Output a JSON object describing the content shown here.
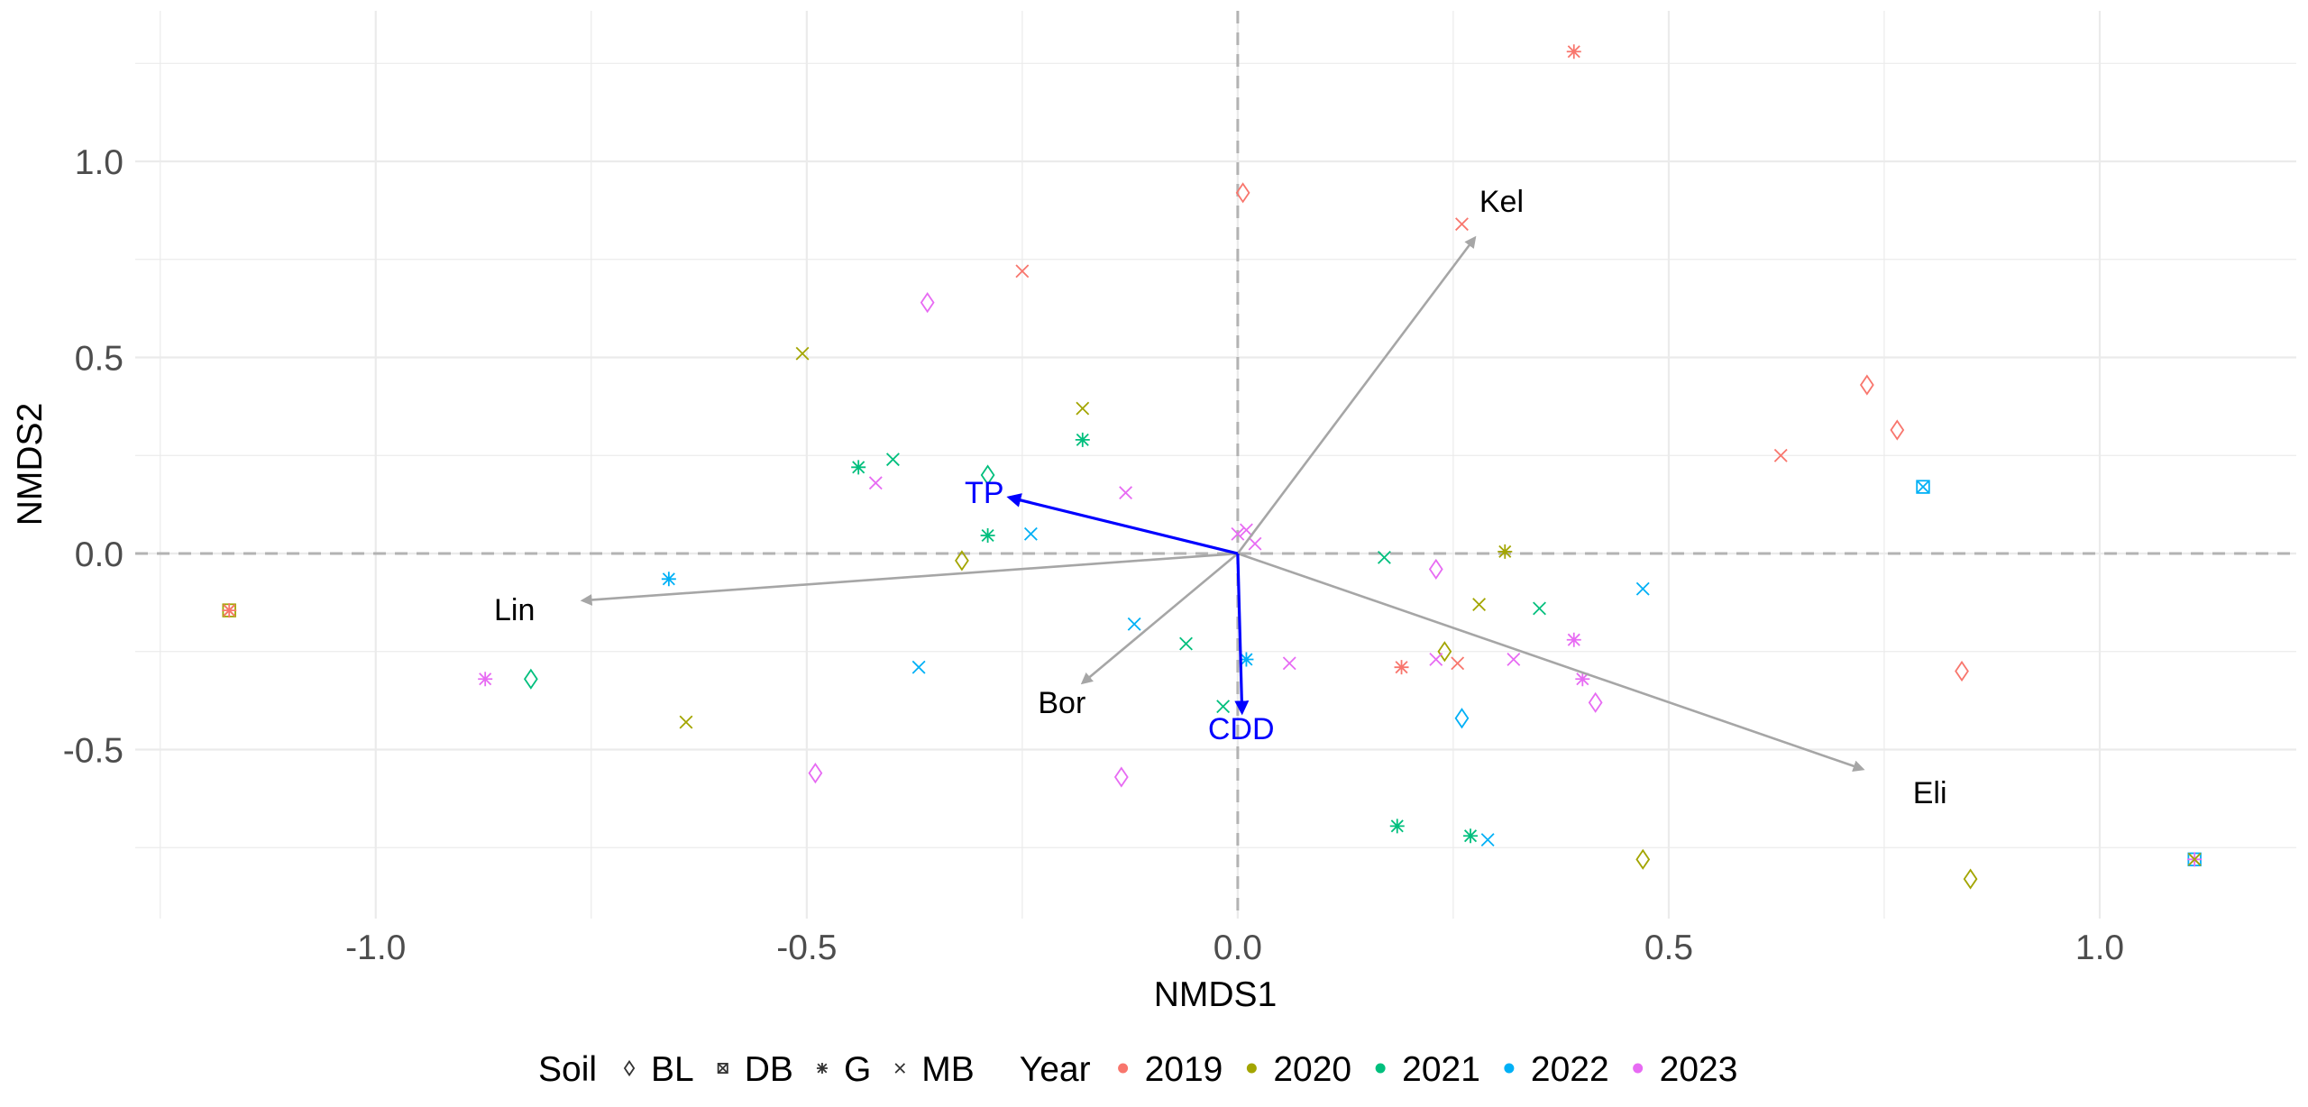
{
  "chart_data": {
    "type": "scatter",
    "title": "",
    "xlabel": "NMDS1",
    "ylabel": "NMDS2",
    "xlim": [
      -1.279,
      1.228
    ],
    "ylim": [
      -0.931,
      1.384
    ],
    "x_ticks": [
      -1.0,
      -0.5,
      0.0,
      0.5,
      1.0
    ],
    "x_tick_labels": [
      "-1.0",
      "-0.5",
      "0.0",
      "0.5",
      "1.0"
    ],
    "y_ticks": [
      -0.5,
      0.0,
      0.5,
      1.0
    ],
    "y_tick_labels": [
      "-0.5",
      "0.0",
      "0.5",
      "1.0"
    ],
    "x_minor": [
      -1.25,
      -0.75,
      -0.25,
      0.25,
      0.75
    ],
    "y_minor": [
      -0.75,
      -0.25,
      0.25,
      0.75,
      1.25
    ],
    "grid": true,
    "reference_lines": {
      "x": 0,
      "y": 0,
      "style": "dashed"
    },
    "legend_position": "bottom",
    "legend": {
      "soil_title": "Soil",
      "soil": [
        {
          "key": "BL",
          "label": "BL",
          "shape": "diamond"
        },
        {
          "key": "DB",
          "label": "DB",
          "shape": "square-cross"
        },
        {
          "key": "G",
          "label": "G",
          "shape": "asterisk"
        },
        {
          "key": "MB",
          "label": "MB",
          "shape": "cross"
        }
      ],
      "year_title": "Year",
      "years": [
        {
          "key": "2019",
          "label": "2019",
          "color": "#F8766D"
        },
        {
          "key": "2020",
          "label": "2020",
          "color": "#A3A500"
        },
        {
          "key": "2021",
          "label": "2021",
          "color": "#00BF7D"
        },
        {
          "key": "2022",
          "label": "2022",
          "color": "#00B0F6"
        },
        {
          "key": "2023",
          "label": "2023",
          "color": "#E76BF3"
        }
      ]
    },
    "points": [
      {
        "x": 0.39,
        "y": 1.28,
        "soil": "G",
        "year": "2019"
      },
      {
        "x": 0.006,
        "y": 0.92,
        "soil": "BL",
        "year": "2019"
      },
      {
        "x": 0.26,
        "y": 0.84,
        "soil": "MB",
        "year": "2019"
      },
      {
        "x": -0.25,
        "y": 0.72,
        "soil": "MB",
        "year": "2019"
      },
      {
        "x": -0.36,
        "y": 0.64,
        "soil": "BL",
        "year": "2023"
      },
      {
        "x": -0.505,
        "y": 0.51,
        "soil": "MB",
        "year": "2020"
      },
      {
        "x": -0.18,
        "y": 0.37,
        "soil": "MB",
        "year": "2020"
      },
      {
        "x": -0.18,
        "y": 0.29,
        "soil": "G",
        "year": "2021"
      },
      {
        "x": -0.44,
        "y": 0.22,
        "soil": "G",
        "year": "2021"
      },
      {
        "x": -0.4,
        "y": 0.24,
        "soil": "MB",
        "year": "2021"
      },
      {
        "x": -0.42,
        "y": 0.18,
        "soil": "MB",
        "year": "2023"
      },
      {
        "x": -0.29,
        "y": 0.2,
        "soil": "BL",
        "year": "2021"
      },
      {
        "x": -0.13,
        "y": 0.155,
        "soil": "MB",
        "year": "2023"
      },
      {
        "x": -0.29,
        "y": 0.046,
        "soil": "G",
        "year": "2021"
      },
      {
        "x": -0.24,
        "y": 0.05,
        "soil": "MB",
        "year": "2022"
      },
      {
        "x": -0.32,
        "y": -0.018,
        "soil": "BL",
        "year": "2020"
      },
      {
        "x": 0.0,
        "y": 0.05,
        "soil": "MB",
        "year": "2023"
      },
      {
        "x": 0.01,
        "y": 0.06,
        "soil": "MB",
        "year": "2023"
      },
      {
        "x": 0.02,
        "y": 0.025,
        "soil": "MB",
        "year": "2023"
      },
      {
        "x": 0.17,
        "y": -0.01,
        "soil": "MB",
        "year": "2021"
      },
      {
        "x": 0.23,
        "y": -0.04,
        "soil": "BL",
        "year": "2023"
      },
      {
        "x": 0.31,
        "y": 0.005,
        "soil": "G",
        "year": "2020"
      },
      {
        "x": 0.28,
        "y": -0.13,
        "soil": "MB",
        "year": "2020"
      },
      {
        "x": 0.35,
        "y": -0.14,
        "soil": "MB",
        "year": "2021"
      },
      {
        "x": 0.39,
        "y": -0.22,
        "soil": "G",
        "year": "2023"
      },
      {
        "x": 0.01,
        "y": -0.27,
        "soil": "G",
        "year": "2022"
      },
      {
        "x": 0.06,
        "y": -0.28,
        "soil": "MB",
        "year": "2023"
      },
      {
        "x": 0.19,
        "y": -0.29,
        "soil": "G",
        "year": "2019"
      },
      {
        "x": 0.24,
        "y": -0.25,
        "soil": "BL",
        "year": "2020"
      },
      {
        "x": 0.23,
        "y": -0.27,
        "soil": "MB",
        "year": "2023"
      },
      {
        "x": 0.255,
        "y": -0.28,
        "soil": "MB",
        "year": "2019"
      },
      {
        "x": 0.32,
        "y": -0.27,
        "soil": "MB",
        "year": "2023"
      },
      {
        "x": 0.4,
        "y": -0.32,
        "soil": "G",
        "year": "2023"
      },
      {
        "x": 0.415,
        "y": -0.38,
        "soil": "BL",
        "year": "2023"
      },
      {
        "x": 0.26,
        "y": -0.42,
        "soil": "BL",
        "year": "2022"
      },
      {
        "x": -0.017,
        "y": -0.39,
        "soil": "MB",
        "year": "2021"
      },
      {
        "x": 0.73,
        "y": 0.43,
        "soil": "BL",
        "year": "2019"
      },
      {
        "x": 0.765,
        "y": 0.315,
        "soil": "BL",
        "year": "2019"
      },
      {
        "x": 0.63,
        "y": 0.25,
        "soil": "MB",
        "year": "2019"
      },
      {
        "x": 0.795,
        "y": 0.17,
        "soil": "DB",
        "year": "2022"
      },
      {
        "x": 0.47,
        "y": -0.09,
        "soil": "MB",
        "year": "2022"
      },
      {
        "x": 0.84,
        "y": -0.3,
        "soil": "BL",
        "year": "2019"
      },
      {
        "x": 0.47,
        "y": -0.78,
        "soil": "BL",
        "year": "2020"
      },
      {
        "x": 0.85,
        "y": -0.83,
        "soil": "BL",
        "year": "2020"
      },
      {
        "x": 1.11,
        "y": -0.78,
        "soil": "DB",
        "year": "2022"
      },
      {
        "x": 1.11,
        "y": -0.78,
        "soil": "G",
        "year": "2023"
      },
      {
        "x": 1.11,
        "y": -0.78,
        "soil": "MB",
        "year": "2020"
      },
      {
        "x": -1.17,
        "y": -0.145,
        "soil": "DB",
        "year": "2020"
      },
      {
        "x": -1.17,
        "y": -0.145,
        "soil": "G",
        "year": "2019"
      },
      {
        "x": -0.66,
        "y": -0.065,
        "soil": "G",
        "year": "2022"
      },
      {
        "x": -0.873,
        "y": -0.32,
        "soil": "G",
        "year": "2023"
      },
      {
        "x": -0.82,
        "y": -0.32,
        "soil": "BL",
        "year": "2021"
      },
      {
        "x": -0.64,
        "y": -0.43,
        "soil": "MB",
        "year": "2020"
      },
      {
        "x": -0.12,
        "y": -0.18,
        "soil": "MB",
        "year": "2022"
      },
      {
        "x": -0.06,
        "y": -0.23,
        "soil": "MB",
        "year": "2021"
      },
      {
        "x": -0.37,
        "y": -0.29,
        "soil": "MB",
        "year": "2022"
      },
      {
        "x": -0.49,
        "y": -0.56,
        "soil": "BL",
        "year": "2023"
      },
      {
        "x": -0.135,
        "y": -0.57,
        "soil": "BL",
        "year": "2023"
      },
      {
        "x": 0.185,
        "y": -0.695,
        "soil": "G",
        "year": "2021"
      },
      {
        "x": 0.27,
        "y": -0.72,
        "soil": "G",
        "year": "2021"
      },
      {
        "x": 0.29,
        "y": -0.73,
        "soil": "MB",
        "year": "2022"
      }
    ],
    "vectors": [
      {
        "name": "Kel",
        "x": 0.275,
        "y": 0.805,
        "label_x": 0.306,
        "label_y": 0.897,
        "color": "#A6A6A6",
        "label_color": "#000000"
      },
      {
        "name": "Lin",
        "x": -0.76,
        "y": -0.12,
        "label_x": -0.839,
        "label_y": -0.145,
        "color": "#A6A6A6",
        "label_color": "#000000"
      },
      {
        "name": "Bor",
        "x": -0.18,
        "y": -0.33,
        "label_x": -0.204,
        "label_y": -0.382,
        "color": "#A6A6A6",
        "label_color": "#000000"
      },
      {
        "name": "Eli",
        "x": 0.725,
        "y": -0.55,
        "label_x": 0.803,
        "label_y": -0.611,
        "color": "#A6A6A6",
        "label_color": "#000000"
      },
      {
        "name": "TP",
        "x": -0.265,
        "y": 0.143,
        "label_x": -0.294,
        "label_y": 0.154,
        "color": "#0000FF",
        "label_color": "#0000FF"
      },
      {
        "name": "CDD",
        "x": 0.005,
        "y": -0.405,
        "label_x": 0.004,
        "label_y": -0.448,
        "color": "#0000FF",
        "label_color": "#0000FF"
      }
    ]
  }
}
